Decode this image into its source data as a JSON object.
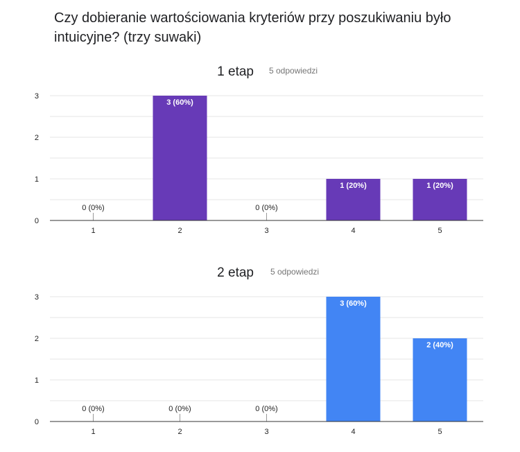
{
  "question": "Czy dobieranie wartościowania kryteriów przy poszukiwaniu było intuicyjne? (trzy suwaki)",
  "chart_data": [
    {
      "type": "bar",
      "title": "1 etap",
      "subtitle": "5 odpowiedzi",
      "categories": [
        "1",
        "2",
        "3",
        "4",
        "5"
      ],
      "values": [
        0,
        3,
        0,
        1,
        1
      ],
      "data_labels": [
        "0 (0%)",
        "3 (60%)",
        "0 (0%)",
        "1 (20%)",
        "1 (20%)"
      ],
      "yticks": [
        "0",
        "1",
        "2",
        "3"
      ],
      "ylim": [
        0,
        3
      ],
      "grid": true,
      "color": "#673ab7"
    },
    {
      "type": "bar",
      "title": "2 etap",
      "subtitle": "5 odpowiedzi",
      "categories": [
        "1",
        "2",
        "3",
        "4",
        "5"
      ],
      "values": [
        0,
        0,
        0,
        3,
        2
      ],
      "data_labels": [
        "0 (0%)",
        "0 (0%)",
        "0 (0%)",
        "3 (60%)",
        "2 (40%)"
      ],
      "yticks": [
        "0",
        "1",
        "2",
        "3"
      ],
      "ylim": [
        0,
        3
      ],
      "grid": true,
      "color": "#4285f4"
    }
  ]
}
